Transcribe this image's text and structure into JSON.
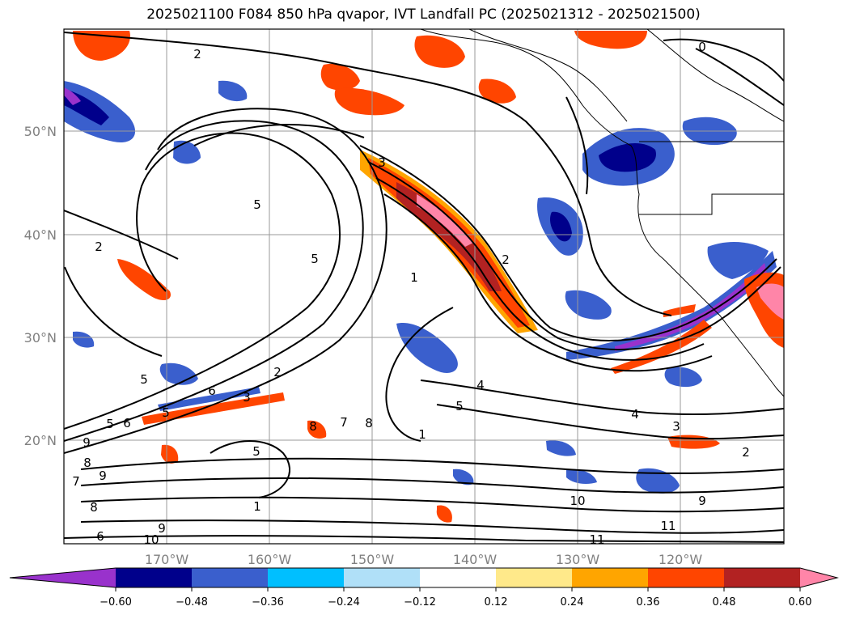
{
  "title": "2025021100 F084 850 hPa qvapor, IVT Landfall PC (2025021312 - 2025021500)",
  "map": {
    "lon_ticks": [
      "170°W",
      "160°W",
      "150°W",
      "140°W",
      "130°W",
      "120°W"
    ],
    "lat_ticks": [
      "50°N",
      "40°N",
      "30°N",
      "20°N"
    ],
    "contour_labels": [
      "2",
      "0",
      "3",
      "5",
      "5",
      "2",
      "2",
      "1",
      "5",
      "5",
      "4",
      "5",
      "4",
      "3",
      "2",
      "10",
      "9",
      "11",
      "11",
      "10",
      "9",
      "8",
      "7",
      "6",
      "6",
      "9",
      "8",
      "5",
      "6",
      "2",
      "1",
      "7",
      "8",
      "9",
      "1",
      "3",
      "5",
      "8"
    ]
  },
  "colorbar": {
    "ticks": [
      "−0.60",
      "−0.48",
      "−0.36",
      "−0.24",
      "−0.12",
      "0.12",
      "0.24",
      "0.36",
      "0.48",
      "0.60"
    ],
    "colors": [
      "#9932cc",
      "#00008b",
      "#3a5fcd",
      "#00bfff",
      "#b0e0f8",
      "#ffffff",
      "#ffe98a",
      "#ffa500",
      "#ff4500",
      "#b22222",
      "#ff85a8"
    ]
  },
  "chart_data": {
    "type": "heatmap",
    "title": "2025021100 F084 850 hPa qvapor, IVT Landfall PC (2025021312 - 2025021500)",
    "x_ticks": [
      "170°W",
      "160°W",
      "150°W",
      "140°W",
      "130°W",
      "120°W"
    ],
    "y_ticks": [
      "50°N",
      "40°N",
      "30°N",
      "20°N"
    ],
    "colorbar_levels": [
      -0.6,
      -0.48,
      -0.36,
      -0.24,
      -0.12,
      0.12,
      0.24,
      0.36,
      0.48,
      0.6
    ],
    "colorbar_extend": "both",
    "grid": true
  }
}
